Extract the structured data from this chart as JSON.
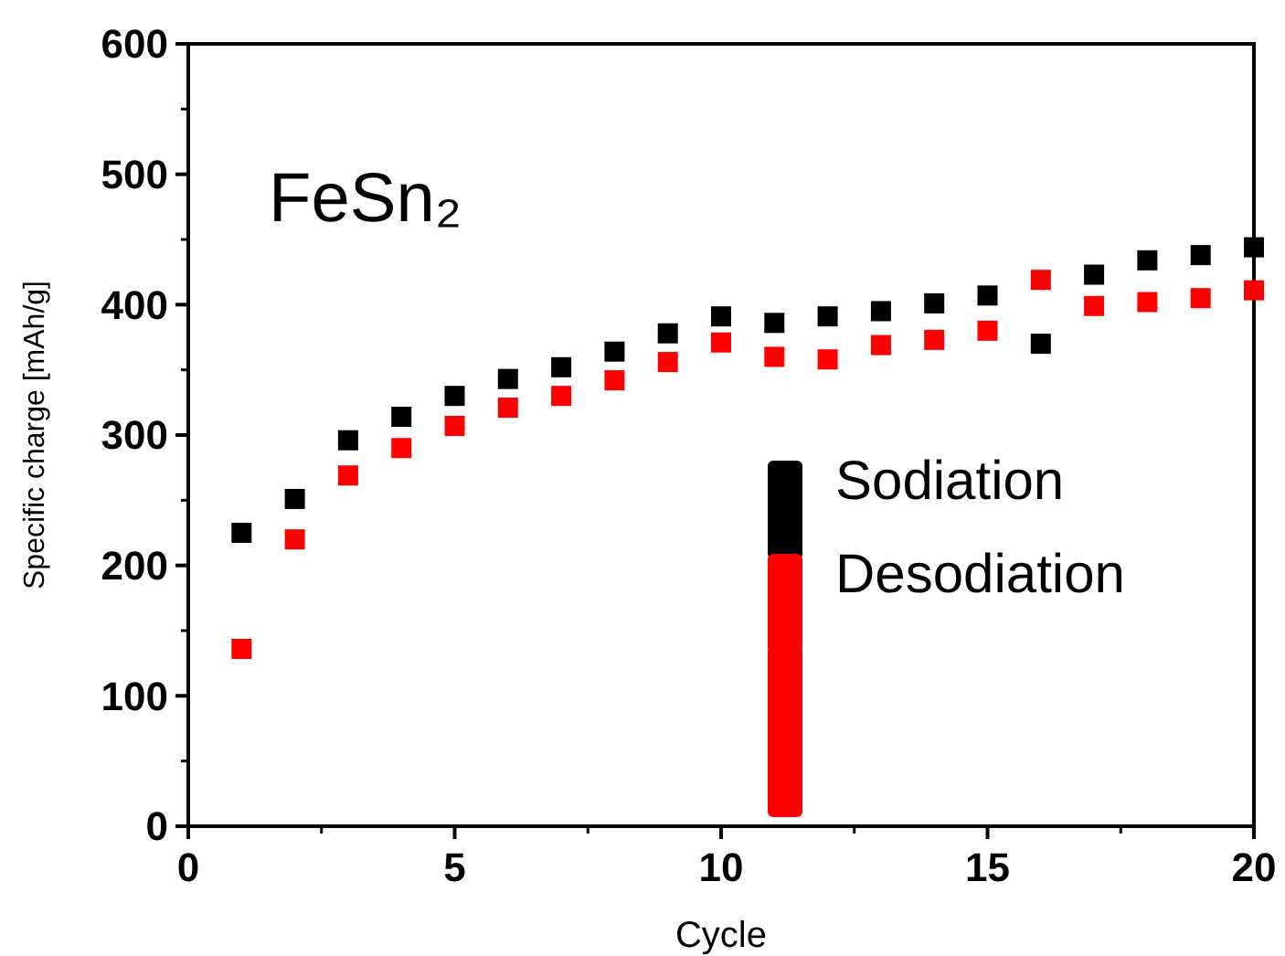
{
  "chart_data": {
    "type": "scatter",
    "title": "FeSn₂",
    "xlabel": "Cycle",
    "ylabel": "Specific charge [mAh/g]",
    "x": [
      1,
      2,
      3,
      4,
      5,
      6,
      7,
      8,
      9,
      10,
      11,
      12,
      13,
      14,
      15,
      16,
      17,
      18,
      19,
      20
    ],
    "series": [
      {
        "name": "Sodiation",
        "color": "#000000",
        "values": [
          225,
          251,
          296,
          314,
          330,
          343,
          352,
          364,
          378,
          391,
          386,
          391,
          395,
          401,
          407,
          370,
          423,
          434,
          438,
          444
        ]
      },
      {
        "name": "Desodiation",
        "color": "#ff0000",
        "values": [
          136,
          220,
          269,
          290,
          307,
          321,
          330,
          342,
          356,
          371,
          360,
          358,
          369,
          373,
          380,
          419,
          399,
          402,
          405,
          411
        ]
      }
    ],
    "xlim": [
      0,
      20
    ],
    "xticks": [
      0,
      5,
      10,
      15,
      20
    ],
    "ylim": [
      0,
      600
    ],
    "yticks": [
      0,
      100,
      200,
      300,
      400,
      500,
      600
    ],
    "marker": "square",
    "legend": "right",
    "grid": false
  }
}
